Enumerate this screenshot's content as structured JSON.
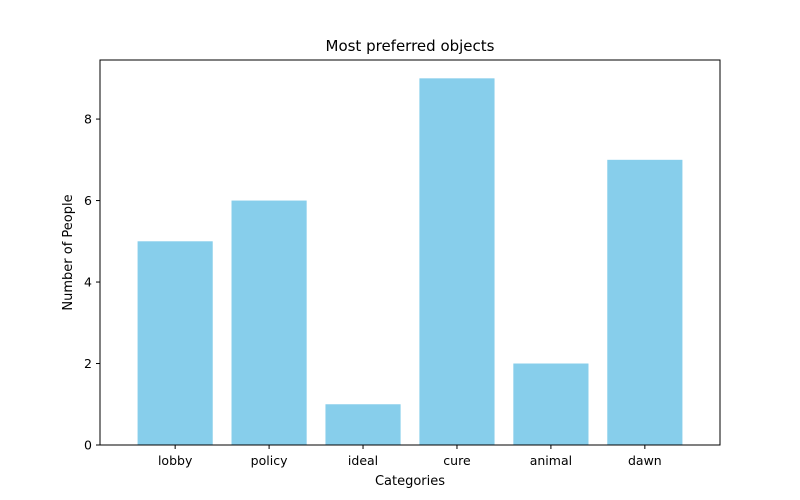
{
  "chart_data": {
    "type": "bar",
    "title": "Most preferred objects",
    "xlabel": "Categories",
    "ylabel": "Number of People",
    "categories": [
      "lobby",
      "policy",
      "ideal",
      "cure",
      "animal",
      "dawn"
    ],
    "values": [
      5,
      6,
      1,
      9,
      2,
      7
    ],
    "ylim": [
      0,
      9.45
    ],
    "yticks": [
      0,
      2,
      4,
      6,
      8
    ],
    "bar_color": "#87ceeb",
    "grid": false,
    "legend": "none"
  }
}
